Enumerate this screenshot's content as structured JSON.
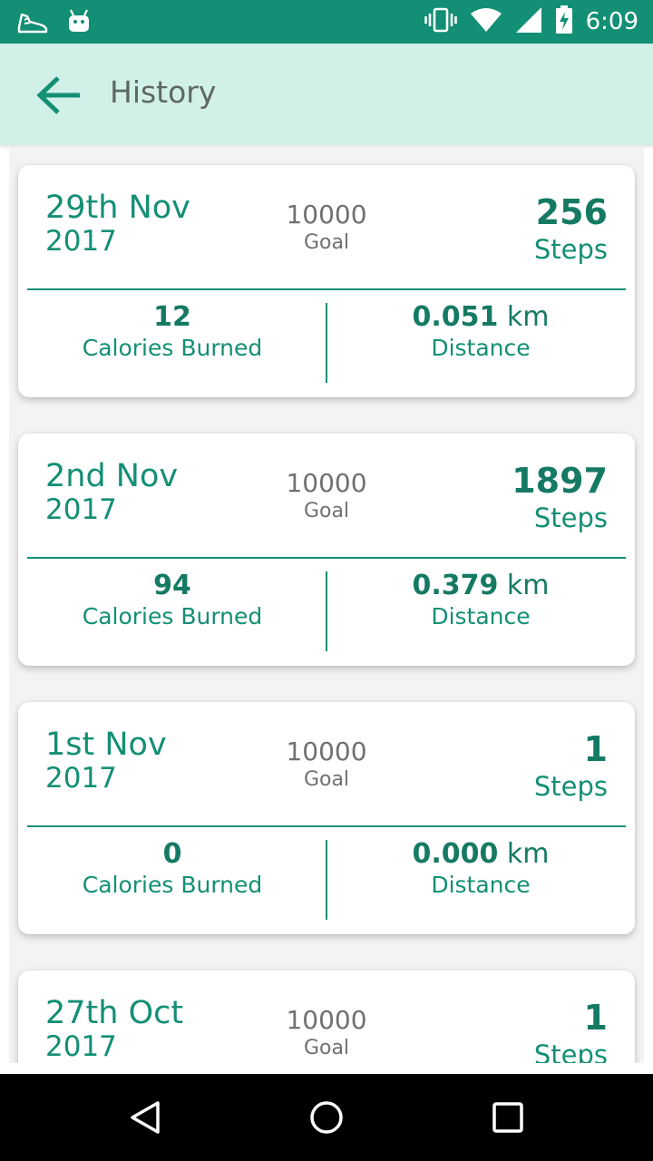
{
  "status_bar": {
    "time": "6:09",
    "left_icons": [
      "shoe-icon",
      "android-icon"
    ],
    "right_icons": [
      "vibrate-icon",
      "wifi-icon",
      "signal-icon",
      "battery-charging-icon"
    ]
  },
  "header": {
    "title": "History",
    "back_icon": "arrow-left-icon"
  },
  "colors": {
    "accent": "#138f75",
    "header_bg": "#d1f0e8",
    "goal_gray": "#707070"
  },
  "history": [
    {
      "day": "29th Nov",
      "year": "2017",
      "goal_value": "10000",
      "goal_label": "Goal",
      "steps": "256",
      "steps_label": "Steps",
      "calories": "12",
      "calories_label": "Calories Burned",
      "distance": "0.051",
      "distance_unit": " km",
      "distance_label": "Distance"
    },
    {
      "day": "2nd Nov",
      "year": "2017",
      "goal_value": "10000",
      "goal_label": "Goal",
      "steps": "1897",
      "steps_label": "Steps",
      "calories": "94",
      "calories_label": "Calories Burned",
      "distance": "0.379",
      "distance_unit": " km",
      "distance_label": "Distance"
    },
    {
      "day": "1st Nov",
      "year": "2017",
      "goal_value": "10000",
      "goal_label": "Goal",
      "steps": "1",
      "steps_label": "Steps",
      "calories": "0",
      "calories_label": "Calories Burned",
      "distance": "0.000",
      "distance_unit": " km",
      "distance_label": "Distance"
    },
    {
      "day": "27th Oct",
      "year": "2017",
      "goal_value": "10000",
      "goal_label": "Goal",
      "steps": "1",
      "steps_label": "Steps",
      "calories": "",
      "calories_label": "",
      "distance": "",
      "distance_unit": "",
      "distance_label": ""
    }
  ],
  "nav_bar": {
    "back_icon": "nav-back-icon",
    "home_icon": "nav-home-icon",
    "recents_icon": "nav-recents-icon"
  }
}
